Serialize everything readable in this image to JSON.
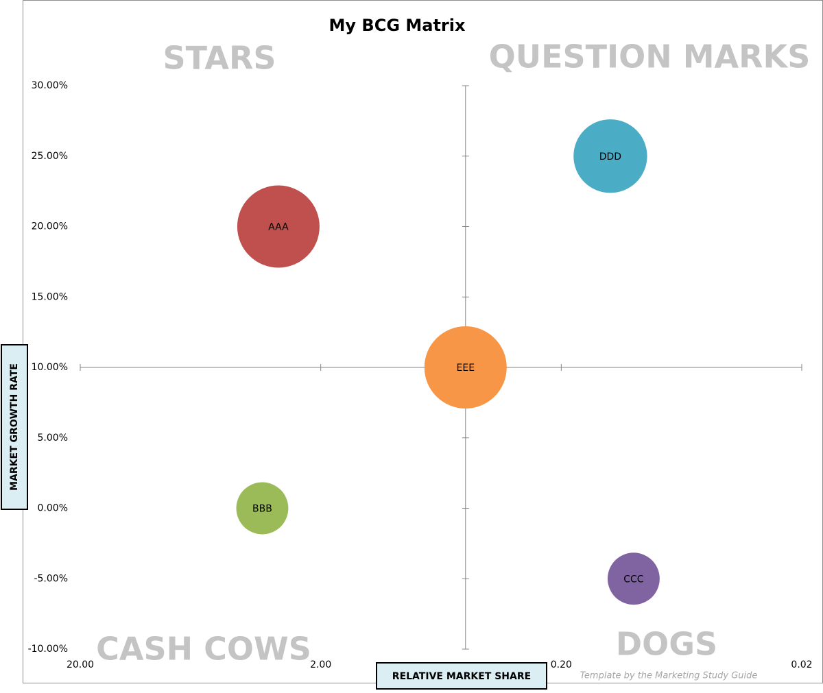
{
  "chart_data": {
    "type": "bubble",
    "title": "My BCG Matrix",
    "x_label": "RELATIVE MARKET SHARE",
    "y_label": "MARKET GROWTH RATE",
    "x_scale": "log",
    "x_reversed": true,
    "xlim": [
      20,
      0.02
    ],
    "xticks": [
      {
        "value": 20,
        "label": "20.00"
      },
      {
        "value": 2,
        "label": "2.00"
      },
      {
        "value": 0.2,
        "label": "0.20"
      },
      {
        "value": 0.02,
        "label": "0.02"
      }
    ],
    "ylim": [
      -10,
      30
    ],
    "yticks": [
      {
        "value": -10,
        "label": "-10.00%"
      },
      {
        "value": -5,
        "label": "-5.00%"
      },
      {
        "value": 0,
        "label": "0.00%"
      },
      {
        "value": 5,
        "label": "5.00%"
      },
      {
        "value": 10,
        "label": "10.00%"
      },
      {
        "value": 15,
        "label": "15.00%"
      },
      {
        "value": 20,
        "label": "20.00%"
      },
      {
        "value": 25,
        "label": "25.00%"
      },
      {
        "value": 30,
        "label": "30.00%"
      }
    ],
    "vertical_axis_crosses_x": 0.5,
    "horizontal_axis_crosses_y": 10,
    "quadrant_labels": [
      "STARS",
      "QUESTION MARKS",
      "CASH COWS",
      "DOGS"
    ],
    "footnote": "Template by the Marketing Study Guide",
    "series": [
      {
        "name": "AAA",
        "color": "#c0504d",
        "x": [
          3
        ],
        "values": [
          20
        ],
        "sizes": [
          100
        ]
      },
      {
        "name": "BBB",
        "color": "#9bbb59",
        "x": [
          3.5
        ],
        "values": [
          0
        ],
        "sizes": [
          40
        ]
      },
      {
        "name": "CCC",
        "color": "#8064a2",
        "x": [
          0.1
        ],
        "values": [
          -5
        ],
        "sizes": [
          40
        ]
      },
      {
        "name": "DDD",
        "color": "#4bacc6",
        "x": [
          0.125
        ],
        "values": [
          25
        ],
        "sizes": [
          80
        ]
      },
      {
        "name": "EEE",
        "color": "#f79646",
        "x": [
          0.5
        ],
        "values": [
          10
        ],
        "sizes": [
          100
        ]
      }
    ]
  }
}
